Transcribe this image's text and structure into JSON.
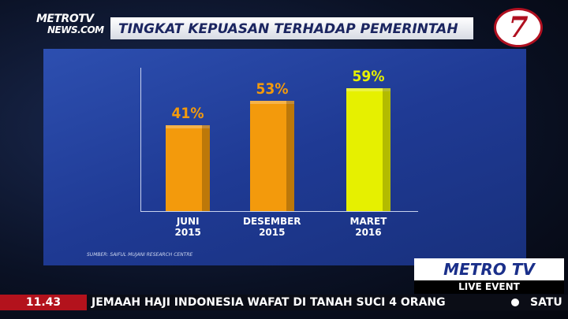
{
  "chart_data": {
    "type": "bar",
    "title": "TINGKAT KEPUASAN TERHADAP PEMERINTAH",
    "categories": [
      "JUNI 2015",
      "DESEMBER 2015",
      "MARET 2016"
    ],
    "values": [
      41,
      53,
      59
    ],
    "value_labels": [
      "41%",
      "53%",
      "59%"
    ],
    "colors": [
      "#f39a0c",
      "#f39a0c",
      "#e6f000"
    ],
    "source": "SUMBER: SAIFUL MUJANI RESEARCH CENTRE"
  },
  "overlay": {
    "logo_top": "METROTV",
    "logo_bottom": "NEWS.COM",
    "channel_badge": "7",
    "brand": "METRO TV",
    "live": "LIVE EVENT",
    "clock": "11.43",
    "ticker": "JEMAAH HAJI INDONESIA WAFAT DI TANAH SUCI 4 ORANG",
    "ticker_next": "SATU"
  }
}
